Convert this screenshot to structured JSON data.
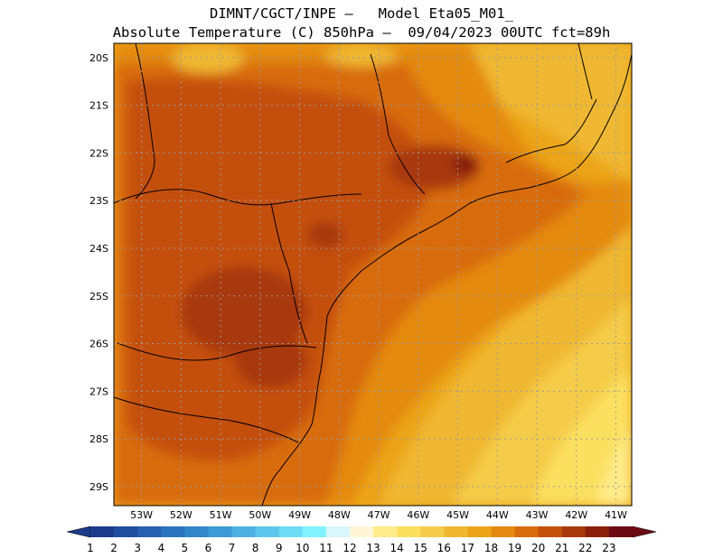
{
  "header": {
    "title_line1": "DIMNT/CGCT/INPE –   Model Eta05_M01_",
    "title_line2": "Absolute Temperature (C) 850hPa –  09/04/2023 00UTC fct=89h"
  },
  "map": {
    "lat_labels": [
      "20S",
      "21S",
      "22S",
      "23S",
      "24S",
      "25S",
      "26S",
      "27S",
      "28S",
      "29S"
    ],
    "lon_labels": [
      "53W",
      "52W",
      "51W",
      "50W",
      "49W",
      "48W",
      "47W",
      "46W",
      "45W",
      "44W",
      "43W",
      "42W",
      "41W"
    ],
    "lat_values": [
      -20,
      -21,
      -22,
      -23,
      -24,
      -25,
      -26,
      -27,
      -28,
      -29
    ],
    "lon_values": [
      -53,
      -52,
      -51,
      -50,
      -49,
      -48,
      -47,
      -46,
      -45,
      -44,
      -43,
      -42,
      -41
    ],
    "lon_range": [
      -53.7,
      -40.6
    ],
    "lat_range": [
      -29.4,
      -19.7
    ],
    "grid": true
  },
  "colorbar": {
    "labels": [
      "1",
      "2",
      "3",
      "4",
      "5",
      "6",
      "7",
      "8",
      "9",
      "10",
      "11",
      "12",
      "13",
      "14",
      "15",
      "16",
      "17",
      "18",
      "19",
      "20",
      "21",
      "22",
      "23"
    ],
    "colors": [
      "#1c3a8a",
      "#214d9e",
      "#2660ae",
      "#2b74bd",
      "#3187c9",
      "#3d9bd6",
      "#4fb0e2",
      "#5ec6ec",
      "#6ddcf4",
      "#80f3ff",
      "#d8f6fb",
      "#fff6d8",
      "#ffec8a",
      "#fbe060",
      "#f5cc4a",
      "#f0b830",
      "#eca419",
      "#e48a10",
      "#d86c0c",
      "#c4500c",
      "#a8380c",
      "#8a200c",
      "#6c0a14"
    ]
  }
}
